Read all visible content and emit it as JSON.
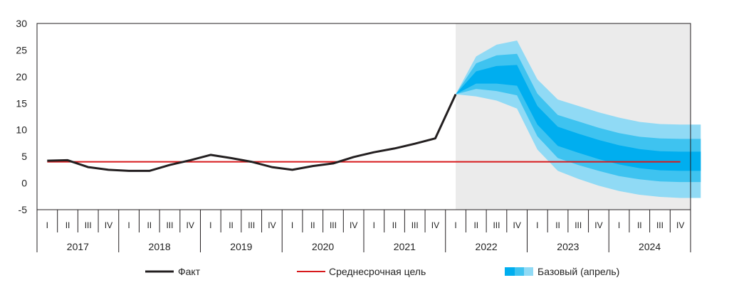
{
  "chart_data": {
    "type": "line",
    "title": "",
    "xlabel": "",
    "ylabel": "",
    "ylim": [
      -5,
      30
    ],
    "yticks": [
      -5,
      0,
      5,
      10,
      15,
      20,
      25,
      30
    ],
    "quarter_labels": [
      "I",
      "II",
      "III",
      "IV"
    ],
    "years": [
      "2017",
      "2018",
      "2019",
      "2020",
      "2021",
      "2022",
      "2023",
      "2024"
    ],
    "forecast_start": "2022 I",
    "grid": false,
    "legend_position": "bottom",
    "colors": {
      "fact": "#231f20",
      "target": "#d7191c",
      "forecast_shade": "#ebebeb",
      "band_outer": "#90daf5",
      "band_middle": "#3ec3f0",
      "band_inner": "#00aeef"
    },
    "series": [
      {
        "name": "Факт",
        "values": [
          4.2,
          4.3,
          3.0,
          2.5,
          2.3,
          2.3,
          3.4,
          4.3,
          5.3,
          4.7,
          4.0,
          3.0,
          2.5,
          3.2,
          3.7,
          4.9,
          5.8,
          6.5,
          7.4,
          8.4,
          16.7
        ]
      },
      {
        "name": "Среднесрочная цель",
        "values": [
          4.0,
          4.0
        ]
      }
    ],
    "forecast": {
      "name": "Базовый (апрель)",
      "bands": [
        {
          "level": "outer",
          "upper": [
            16.7,
            23.8,
            26.0,
            26.8,
            19.5,
            15.7,
            14.5,
            13.3,
            12.3,
            11.5,
            11.1,
            11.0,
            11.0
          ],
          "lower": [
            16.7,
            16.3,
            15.5,
            14.0,
            6.3,
            2.3,
            0.8,
            -0.5,
            -1.5,
            -2.2,
            -2.6,
            -2.8,
            -2.8
          ]
        },
        {
          "level": "middle",
          "upper": [
            16.7,
            22.5,
            24.0,
            24.3,
            16.8,
            12.8,
            11.6,
            10.4,
            9.4,
            8.7,
            8.4,
            8.3,
            8.3
          ],
          "lower": [
            16.7,
            17.7,
            17.3,
            16.5,
            8.8,
            4.7,
            3.4,
            2.3,
            1.3,
            0.7,
            0.3,
            0.2,
            0.2
          ]
        },
        {
          "level": "inner",
          "upper": [
            16.7,
            21.0,
            22.0,
            22.2,
            14.5,
            10.6,
            9.3,
            8.1,
            7.1,
            6.4,
            6.0,
            5.9,
            5.9
          ],
          "lower": [
            16.7,
            18.7,
            18.7,
            18.3,
            11.0,
            7.0,
            5.7,
            4.5,
            3.5,
            2.8,
            2.4,
            2.3,
            2.3
          ]
        }
      ]
    }
  }
}
